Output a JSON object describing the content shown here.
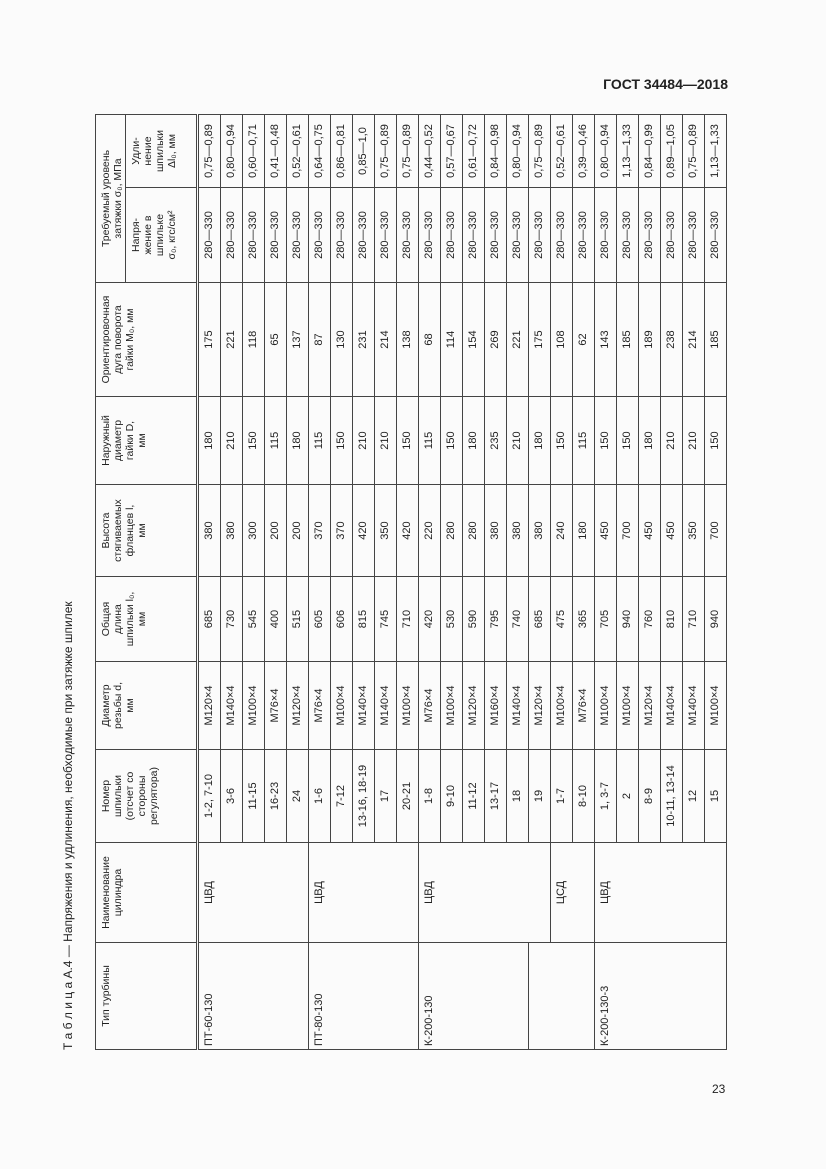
{
  "header": {
    "standard": "ГОСТ 34484—2018"
  },
  "page_number": "23",
  "table": {
    "caption_prefix": "Т а б л и ц а  А.4",
    "caption_text": " — Напряжения и удлинения, необходимые при затяжке шпилек",
    "columns": {
      "turbine": "Тип турбины",
      "cylinder": "Наименование\nцилиндра",
      "number": "Номер\nшпильки\n(отсчет со\nстороны\nрегулятора)",
      "thread": "Диаметр\nрезьбы d,\nмм",
      "length": "Общая\nдлина\nшпильки l₀,\nмм",
      "height": "Высота\nстягиваемых\nфланцев l,\nмм",
      "outer_d": "Наружный\nдиаметр\nгайки D,\nмм",
      "arc": "Ориентировочная\nдуга поворота\nгайки M₀, мм",
      "group": "Требуемый уровень\nзатяжки σ₀, МПа",
      "stress": "Напря-\nжение в\nшпильке\nσ₀, кгс/см²",
      "elongation": "Удли-\nнение\nшпильки\nΔl₀, мм"
    },
    "turbine_groups": [
      {
        "label": "ПТ-60-130",
        "row_count": 5
      },
      {
        "label": "ПТ-80-130",
        "row_count": 5
      },
      {
        "label": "К-200-130",
        "row_count": 5
      },
      {
        "label": "",
        "row_count": 3
      },
      {
        "label": "К-200-130-3",
        "row_count": 6
      }
    ],
    "cylinder_groups": [
      {
        "label": "ЦВД",
        "row_count": 5
      },
      {
        "label": "ЦВД",
        "row_count": 5
      },
      {
        "label": "ЦВД",
        "row_count": 6
      },
      {
        "label": "ЦСД",
        "row_count": 2
      },
      {
        "label": "ЦВД",
        "row_count": 6
      }
    ],
    "rows": [
      {
        "number": "1-2, 7-10",
        "thread": "М120×4",
        "length": "685",
        "height": "380",
        "outer_d": "180",
        "arc": "175",
        "stress": "280—330",
        "elongation": "0,75—0,89"
      },
      {
        "number": "3-6",
        "thread": "М140×4",
        "length": "730",
        "height": "380",
        "outer_d": "210",
        "arc": "221",
        "stress": "280—330",
        "elongation": "0,80—0,94"
      },
      {
        "number": "11-15",
        "thread": "М100×4",
        "length": "545",
        "height": "300",
        "outer_d": "150",
        "arc": "118",
        "stress": "280—330",
        "elongation": "0,60—0,71"
      },
      {
        "number": "16-23",
        "thread": "М76×4",
        "length": "400",
        "height": "200",
        "outer_d": "115",
        "arc": "65",
        "stress": "280—330",
        "elongation": "0,41—0,48"
      },
      {
        "number": "24",
        "thread": "М120×4",
        "length": "515",
        "height": "200",
        "outer_d": "180",
        "arc": "137",
        "stress": "280—330",
        "elongation": "0,52—0,61"
      },
      {
        "number": "1-6",
        "thread": "М76×4",
        "length": "605",
        "height": "370",
        "outer_d": "115",
        "arc": "87",
        "stress": "280—330",
        "elongation": "0,64—0,75"
      },
      {
        "number": "7-12",
        "thread": "М100×4",
        "length": "606",
        "height": "370",
        "outer_d": "150",
        "arc": "130",
        "stress": "280—330",
        "elongation": "0,86—0,81"
      },
      {
        "number": "13-16, 18-19",
        "thread": "М140×4",
        "length": "815",
        "height": "420",
        "outer_d": "210",
        "arc": "231",
        "stress": "280—330",
        "elongation": "0,85—1,0"
      },
      {
        "number": "17",
        "thread": "М140×4",
        "length": "745",
        "height": "350",
        "outer_d": "210",
        "arc": "214",
        "stress": "280—330",
        "elongation": "0,75—0,89"
      },
      {
        "number": "20-21",
        "thread": "М100×4",
        "length": "710",
        "height": "420",
        "outer_d": "150",
        "arc": "138",
        "stress": "280—330",
        "elongation": "0,75—0,89"
      },
      {
        "number": "1-8",
        "thread": "М76×4",
        "length": "420",
        "height": "220",
        "outer_d": "115",
        "arc": "68",
        "stress": "280—330",
        "elongation": "0,44—0,52"
      },
      {
        "number": "9-10",
        "thread": "М100×4",
        "length": "530",
        "height": "280",
        "outer_d": "150",
        "arc": "114",
        "stress": "280—330",
        "elongation": "0,57—0,67"
      },
      {
        "number": "11-12",
        "thread": "М120×4",
        "length": "590",
        "height": "280",
        "outer_d": "180",
        "arc": "154",
        "stress": "280—330",
        "elongation": "0,61—0,72"
      },
      {
        "number": "13-17",
        "thread": "М160×4",
        "length": "795",
        "height": "380",
        "outer_d": "235",
        "arc": "269",
        "stress": "280—330",
        "elongation": "0,84—0,98"
      },
      {
        "number": "18",
        "thread": "М140×4",
        "length": "740",
        "height": "380",
        "outer_d": "210",
        "arc": "221",
        "stress": "280—330",
        "elongation": "0,80—0,94"
      },
      {
        "number": "19",
        "thread": "М120×4",
        "length": "685",
        "height": "380",
        "outer_d": "180",
        "arc": "175",
        "stress": "280—330",
        "elongation": "0,75—0,89"
      },
      {
        "number": "1-7",
        "thread": "М100×4",
        "length": "475",
        "height": "240",
        "outer_d": "150",
        "arc": "108",
        "stress": "280—330",
        "elongation": "0,52—0,61"
      },
      {
        "number": "8-10",
        "thread": "М76×4",
        "length": "365",
        "height": "180",
        "outer_d": "115",
        "arc": "62",
        "stress": "280—330",
        "elongation": "0,39—0,46"
      },
      {
        "number": "1, 3-7",
        "thread": "М100×4",
        "length": "705",
        "height": "450",
        "outer_d": "150",
        "arc": "143",
        "stress": "280—330",
        "elongation": "0,80—0,94"
      },
      {
        "number": "2",
        "thread": "М100×4",
        "length": "940",
        "height": "700",
        "outer_d": "150",
        "arc": "185",
        "stress": "280—330",
        "elongation": "1,13—1,33"
      },
      {
        "number": "8-9",
        "thread": "М120×4",
        "length": "760",
        "height": "450",
        "outer_d": "180",
        "arc": "189",
        "stress": "280—330",
        "elongation": "0,84—0,99"
      },
      {
        "number": "10-11, 13-14",
        "thread": "М140×4",
        "length": "810",
        "height": "450",
        "outer_d": "210",
        "arc": "238",
        "stress": "280—330",
        "elongation": "0,89—1,05"
      },
      {
        "number": "12",
        "thread": "М140×4",
        "length": "710",
        "height": "350",
        "outer_d": "210",
        "arc": "214",
        "stress": "280—330",
        "elongation": "0,75—0,89"
      },
      {
        "number": "15",
        "thread": "М100×4",
        "length": "940",
        "height": "700",
        "outer_d": "150",
        "arc": "185",
        "stress": "280—330",
        "elongation": "1,13—1,33"
      }
    ]
  }
}
